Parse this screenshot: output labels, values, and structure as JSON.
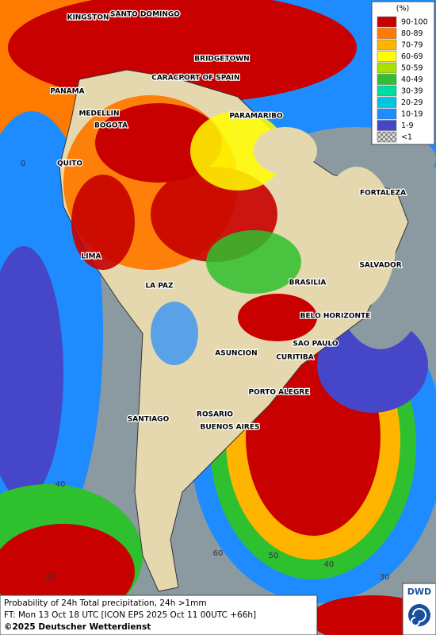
{
  "legend": {
    "title": "(%)",
    "items": [
      {
        "label": "90-100",
        "color": "#c80000"
      },
      {
        "label": "80-89",
        "color": "#ff7a00"
      },
      {
        "label": "70-79",
        "color": "#ffb400"
      },
      {
        "label": "60-69",
        "color": "#ffff00"
      },
      {
        "label": "50-59",
        "color": "#a8e000"
      },
      {
        "label": "40-49",
        "color": "#2ec02e"
      },
      {
        "label": "30-39",
        "color": "#00dca0"
      },
      {
        "label": "20-29",
        "color": "#00c4e0"
      },
      {
        "label": "10-19",
        "color": "#1e8cff"
      },
      {
        "label": "1-9",
        "color": "#4646c8"
      },
      {
        "label": "<1",
        "color": "#b4b4b4"
      }
    ]
  },
  "cities": [
    "KINGSTON",
    "SANTO DOMINGO",
    "BRIDGETOWN",
    "CARACAS",
    "PORT OF SPAIN",
    "PANAMA",
    "MEDELLIN",
    "BOGOTA",
    "PARAMARIBO",
    "QUITO",
    "FORTALEZA",
    "LIMA",
    "SALVADOR",
    "BRASILIA",
    "LA PAZ",
    "BELO HORIZONTE",
    "SAO PAULO",
    "ASUNCION",
    "CURITIBA",
    "PORTO ALEGRE",
    "ROSARIO",
    "BUENOS AIRES",
    "SANTIAGO"
  ],
  "grid_labels": [
    "0",
    "40",
    "60",
    "50",
    "40",
    "30",
    "80"
  ],
  "caption": {
    "line1": "Probability of 24h Total precipitation, 24h >1mm",
    "line2": "FT: Mon 13 Oct 18 UTC [ICON EPS 2025 Oct 11 00UTC +66h]",
    "line3": "©2025 Deutscher Wetterdienst"
  },
  "logo": "DWD"
}
